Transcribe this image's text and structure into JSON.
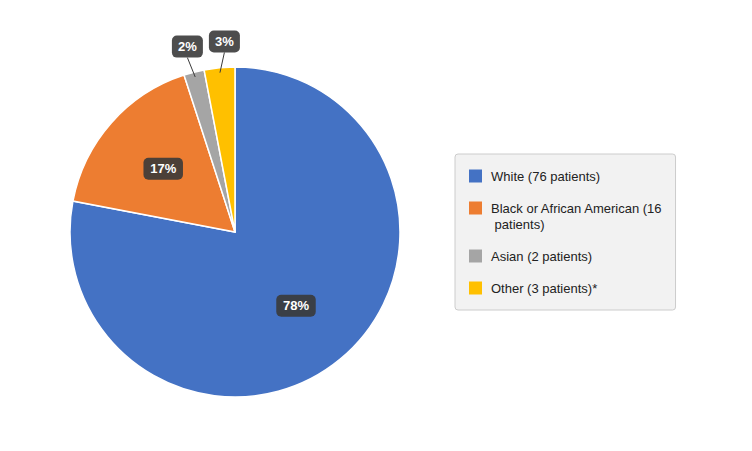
{
  "chart_data": {
    "type": "pie",
    "categories": [
      "White (76 patients)",
      "Black or African American (16\n  patients)",
      "Asian (2 patients)",
      "Other (3 patients)*"
    ],
    "values": [
      78,
      17,
      2,
      3
    ],
    "value_labels": [
      "78%",
      "17%",
      "2%",
      "3%"
    ],
    "colors": [
      "#4472C4",
      "#ED7D31",
      "#A5A5A5",
      "#FFC000"
    ],
    "data_labels": true,
    "legend": "right"
  }
}
